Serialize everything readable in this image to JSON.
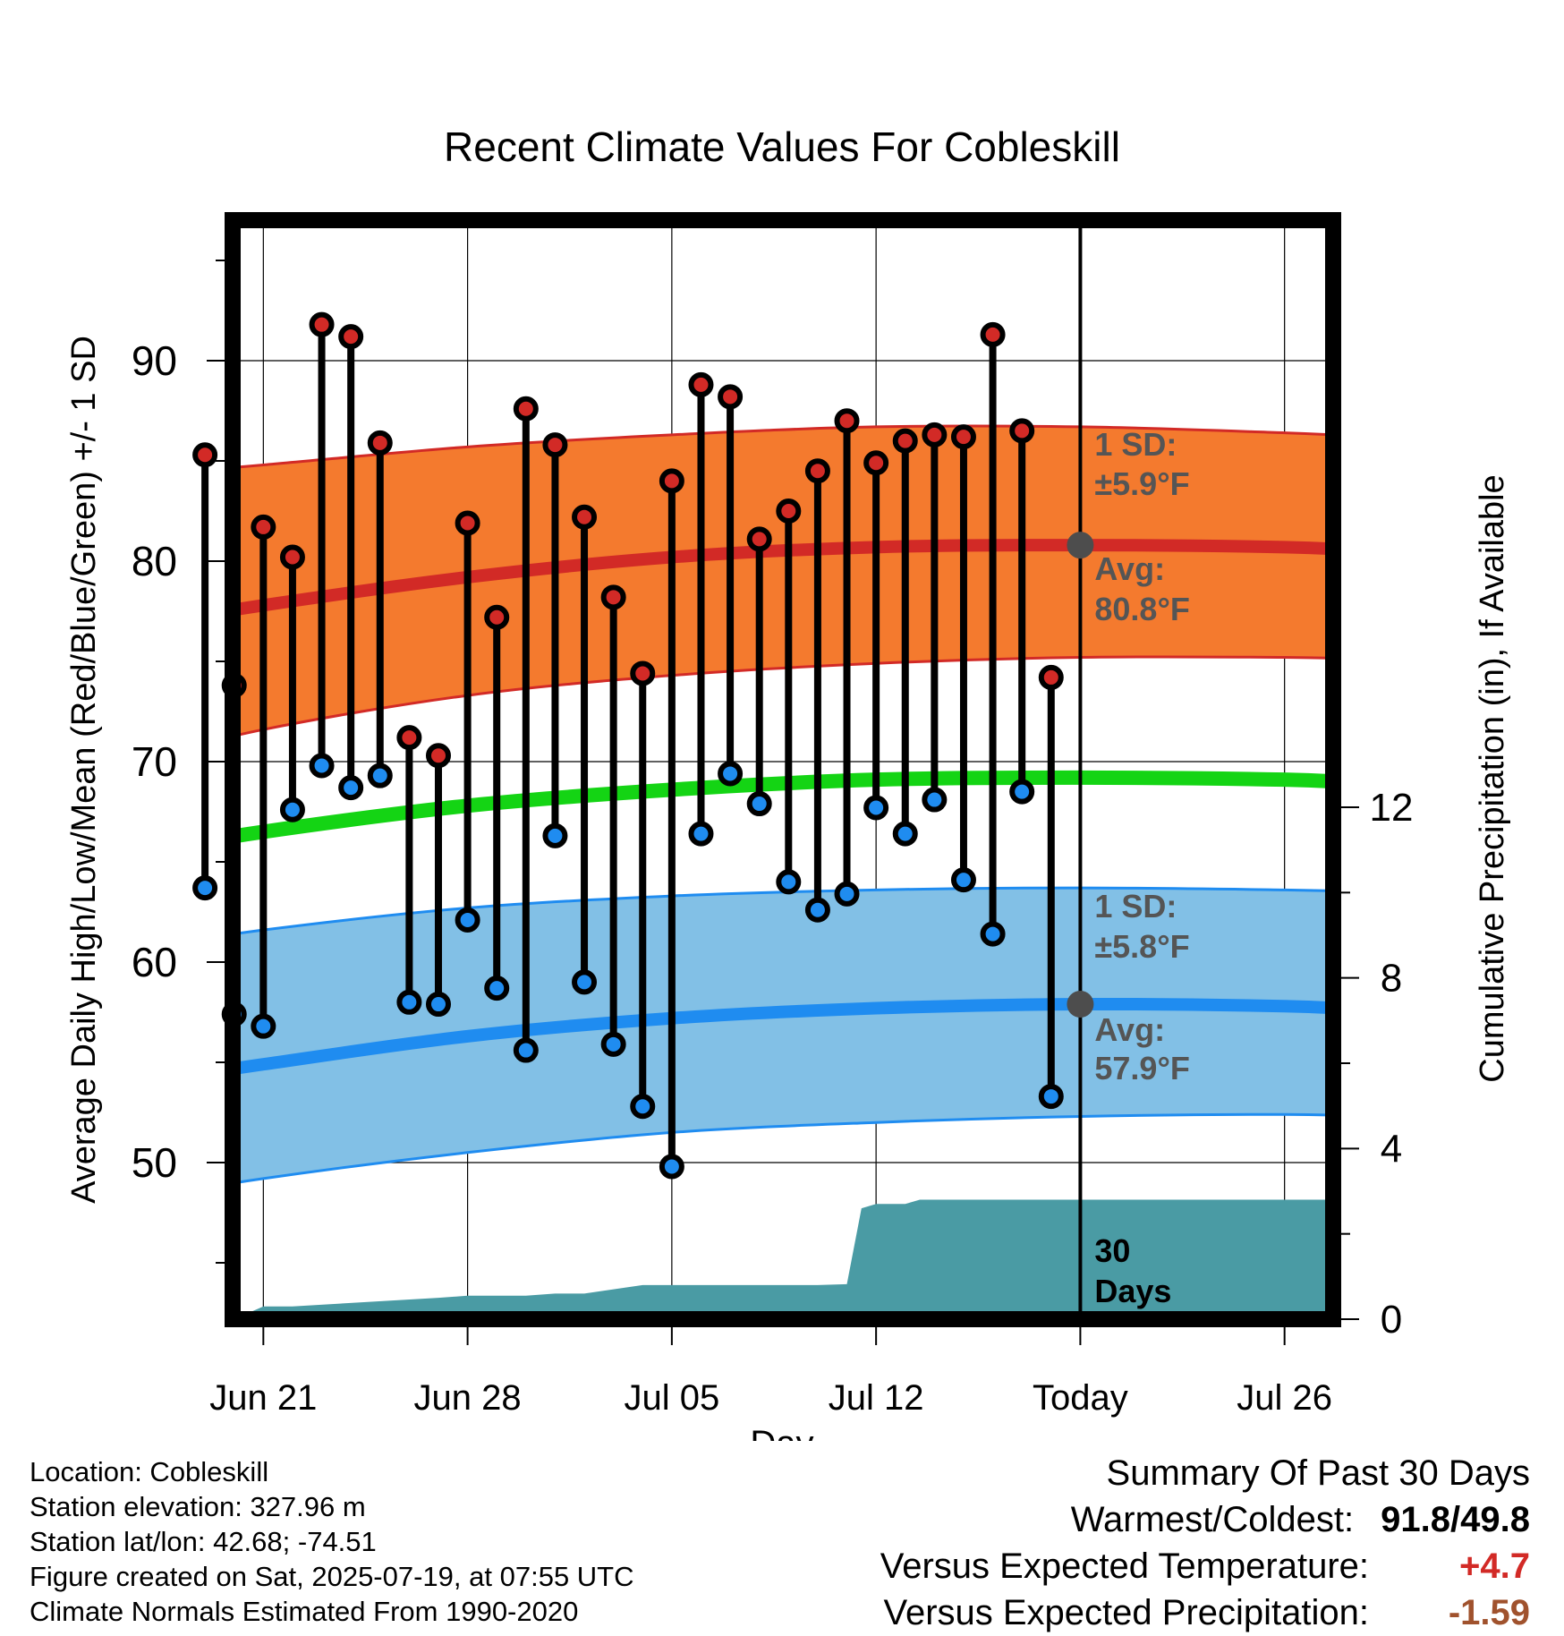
{
  "chart_data": {
    "type": "line",
    "title": "Recent Climate Values For Cobleskill",
    "xlabel": "Day",
    "ylabel": "Average Daily High/Low/Mean (Red/Blue/Green) +/- 1 SD",
    "y2label": "Cumulative Precipitation (in), If Available",
    "x_tick_labels": [
      "Jun 21",
      "Jun 28",
      "Jul 05",
      "Jul 12",
      "Today",
      "Jul 26"
    ],
    "x_tick_days": [
      3,
      10,
      17,
      24,
      31,
      38
    ],
    "today_day": 31,
    "x_range": [
      0,
      41
    ],
    "ylim": [
      42,
      97
    ],
    "y_ticks": [
      50,
      60,
      70,
      80,
      90
    ],
    "y2lim": [
      0,
      24
    ],
    "y2_ticks": [
      0,
      4,
      8,
      12
    ],
    "grid": true,
    "daily_high_low": {
      "days": [
        1,
        2,
        3,
        4,
        5,
        6,
        7,
        8,
        9,
        10,
        11,
        12,
        13,
        14,
        15,
        16,
        17,
        18,
        19,
        20,
        21,
        22,
        23,
        24,
        25,
        26,
        27,
        28,
        29,
        30
      ],
      "high": [
        85.3,
        73.8,
        81.7,
        80.2,
        91.8,
        91.2,
        85.9,
        71.2,
        70.3,
        81.9,
        77.2,
        87.6,
        85.8,
        82.2,
        78.2,
        74.4,
        84.0,
        88.8,
        88.2,
        81.1,
        82.5,
        84.5,
        87.0,
        84.9,
        86.0,
        86.3,
        86.2,
        91.3,
        86.5,
        74.2
      ],
      "low": [
        63.7,
        57.4,
        56.8,
        67.6,
        69.8,
        68.7,
        69.3,
        58.0,
        57.9,
        62.1,
        58.7,
        55.6,
        66.3,
        59.0,
        55.9,
        52.8,
        49.8,
        66.4,
        69.4,
        67.9,
        64.0,
        62.6,
        63.4,
        67.7,
        66.4,
        68.1,
        64.1,
        61.4,
        68.5,
        53.3
      ]
    },
    "normals": {
      "days": [
        -2,
        3,
        10,
        17,
        24,
        31,
        38,
        41
      ],
      "avg_high": [
        76.6,
        77.8,
        79.2,
        80.2,
        80.7,
        80.8,
        80.7,
        80.5
      ],
      "high_plus_sd": [
        84.2,
        84.8,
        85.7,
        86.3,
        86.7,
        86.7,
        86.4,
        86.2
      ],
      "high_minus_sd": [
        69.8,
        71.6,
        73.3,
        74.3,
        74.9,
        75.2,
        75.2,
        75.1
      ],
      "mean": [
        65.3,
        66.5,
        67.8,
        68.6,
        69.1,
        69.2,
        69.1,
        68.9
      ],
      "avg_low": [
        53.8,
        54.9,
        56.3,
        57.2,
        57.7,
        57.9,
        57.8,
        57.6
      ],
      "low_plus_sd": [
        60.5,
        61.6,
        62.7,
        63.3,
        63.6,
        63.7,
        63.6,
        63.5
      ],
      "low_minus_sd": [
        48.0,
        49.2,
        50.5,
        51.5,
        52.0,
        52.3,
        52.4,
        52.3
      ]
    },
    "precip": {
      "days": [
        -2,
        2,
        3,
        4,
        9,
        10,
        12,
        13,
        14,
        15,
        16,
        17,
        20,
        22,
        23,
        23.5,
        24,
        25,
        25.5,
        26,
        32,
        38,
        41
      ],
      "cumulative": [
        0,
        0,
        0.3,
        0.3,
        0.5,
        0.55,
        0.55,
        0.6,
        0.6,
        0.7,
        0.8,
        0.8,
        0.8,
        0.8,
        0.82,
        2.6,
        2.7,
        2.7,
        2.8,
        2.8,
        2.8,
        2.8,
        2.8
      ]
    },
    "annotations": {
      "high_sd_label": "1 SD:",
      "high_sd_value": "±5.9°F",
      "high_avg_label": "Avg:",
      "high_avg_value": "80.8°F",
      "low_sd_label": "1 SD:",
      "low_sd_value": "±5.8°F",
      "low_avg_label": "Avg:",
      "low_avg_value": "57.9°F",
      "today_high_avg": 80.8,
      "today_low_avg": 57.9,
      "window_label_1": "30",
      "window_label_2": "Days"
    },
    "colors": {
      "high_band": "#f47a2e",
      "high_line": "#d22a26",
      "mean_line": "#14d414",
      "low_band": "#82c0e6",
      "low_line": "#1f8cf0",
      "precip": "#4a9ba4",
      "high_dot": "#d22a26",
      "low_dot": "#1f8cf0",
      "annotation_text": "#555555"
    }
  },
  "info": {
    "location": "Location: Cobleskill",
    "elevation": "Station elevation: 327.96 m",
    "latlon": "Station lat/lon: 42.68; -74.51",
    "created": "Figure created on Sat, 2025-07-19, at 07:55 UTC",
    "normals": "Climate Normals Estimated From 1990-2020"
  },
  "summary": {
    "title": "Summary Of Past 30 Days",
    "warmest_label": "Warmest/Coldest:",
    "warmest": "91.8",
    "coldest": "49.8",
    "temp_label": "Versus Expected Temperature:",
    "temp_value": "+4.7",
    "temp_color": "#d22a26",
    "precip_label": "Versus Expected Precipitation:",
    "precip_value": "-1.59",
    "precip_color": "#a0522d"
  }
}
